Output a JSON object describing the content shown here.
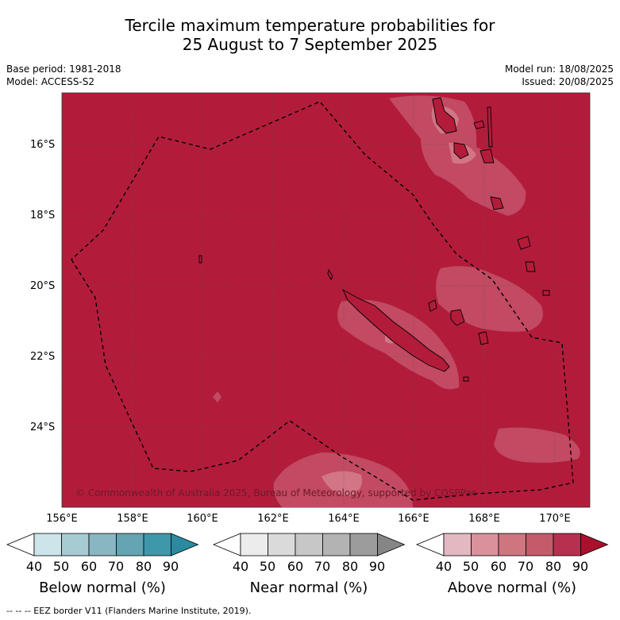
{
  "title": {
    "line1": "Tercile maximum temperature probabilities for",
    "line2": "25 August to 7 September 2025"
  },
  "meta": {
    "base_period": "Base period: 1981-2018",
    "model": "Model: ACCESS-S2",
    "model_run": "Model run: 18/08/2025",
    "issued": "Issued: 20/08/2025"
  },
  "map": {
    "background_color": "#b21c3a",
    "lat_labels": [
      "16°S",
      "18°S",
      "20°S",
      "22°S",
      "24°S"
    ],
    "lon_labels": [
      "156°E",
      "158°E",
      "160°E",
      "162°E",
      "164°E",
      "166°E",
      "168°E",
      "170°E"
    ],
    "copyright": "© Commonwealth of Australia 2025, Bureau of Meteorology, supported by COSPPac"
  },
  "legend": {
    "ticks": [
      "40",
      "50",
      "60",
      "70",
      "80",
      "90"
    ],
    "below": {
      "title": "Below normal (%)",
      "colors": [
        "#ffffff",
        "#cde4ea",
        "#a7cbd3",
        "#88b6c2",
        "#64a4b3",
        "#3f97aa",
        "#2a8aa0"
      ]
    },
    "near": {
      "title": "Near normal (%)",
      "colors": [
        "#ffffff",
        "#ececec",
        "#dadada",
        "#c7c7c7",
        "#b3b3b3",
        "#9c9c9c",
        "#868686"
      ]
    },
    "above": {
      "title": "Above normal (%)",
      "colors": [
        "#ffffff",
        "#e3b8c0",
        "#d9919c",
        "#cf7580",
        "#c45a6a",
        "#b83050",
        "#a8102c"
      ]
    }
  },
  "footer": "--  --  -- EEZ border V11 (Flanders Marine Institute, 2019)."
}
